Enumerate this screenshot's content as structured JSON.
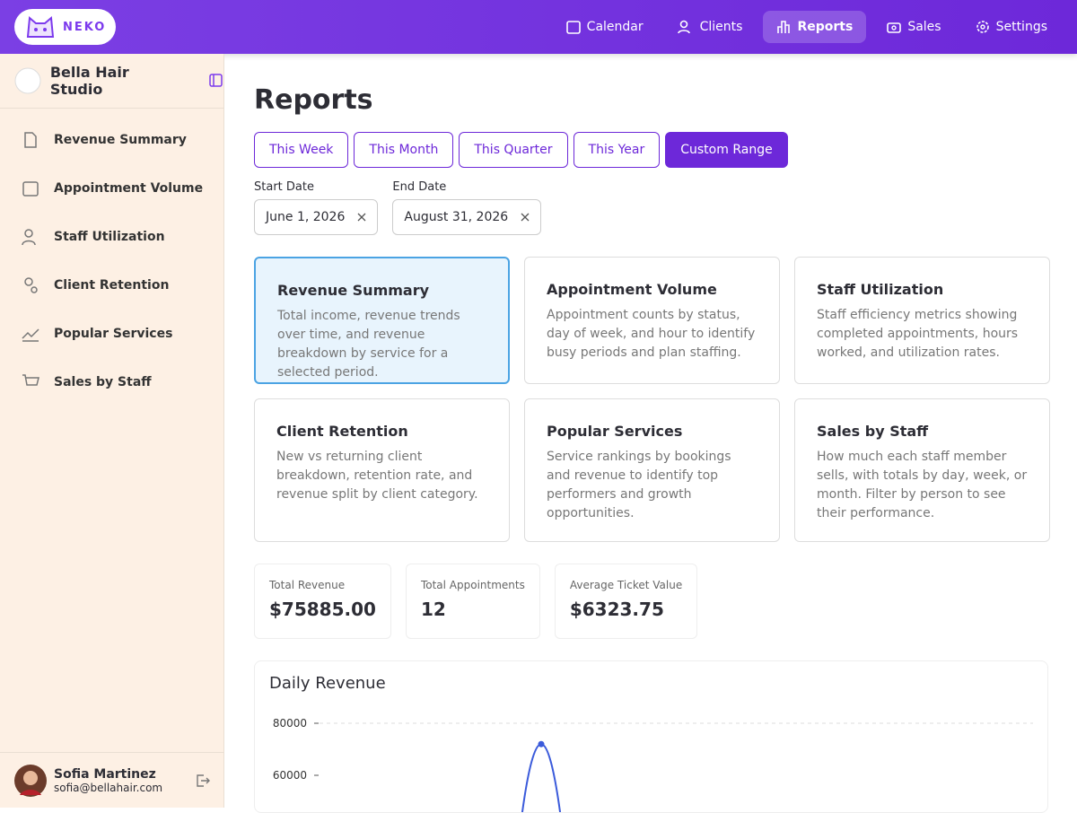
{
  "nav": {
    "logo": "NEKO",
    "items": [
      "Calendar",
      "Clients",
      "Reports",
      "Sales",
      "Settings"
    ]
  },
  "sidebar": {
    "business": "Bella Hair Studio",
    "items": [
      "Revenue Summary",
      "Appointment Volume",
      "Staff Utilization",
      "Client Retention",
      "Popular Services",
      "Sales by Staff"
    ],
    "user": {
      "name": "Sofia Martinez",
      "email": "sofia@bellahair.com"
    }
  },
  "page": {
    "title": "Reports",
    "ranges": [
      "This Week",
      "This Month",
      "This Quarter",
      "This Year",
      "Custom Range"
    ],
    "start_label": "Start Date",
    "start_value": "June 1, 2026",
    "end_label": "End Date",
    "end_value": "August 31, 2026",
    "cards": [
      {
        "title": "Revenue Summary",
        "text": "Total income, revenue trends over time, and revenue breakdown by service for a selected period."
      },
      {
        "title": "Appointment Volume",
        "text": "Appointment counts by status, day of week, and hour to identify busy periods and plan staffing."
      },
      {
        "title": "Staff Utilization",
        "text": "Staff efficiency metrics showing completed appointments, hours worked, and utilization rates."
      },
      {
        "title": "Client Retention",
        "text": "New vs returning client breakdown, retention rate, and revenue split by client category."
      },
      {
        "title": "Popular Services",
        "text": "Service rankings by bookings and revenue to identify top performers and growth opportunities."
      },
      {
        "title": "Sales by Staff",
        "text": "How much each staff member sells, with totals by day, week, or month. Filter by person to see their performance."
      }
    ],
    "stats": [
      {
        "label": "Total Revenue",
        "value": "$75885.00"
      },
      {
        "label": "Total Appointments",
        "value": "12"
      },
      {
        "label": "Average Ticket Value",
        "value": "$6323.75"
      }
    ]
  },
  "chart_data": {
    "type": "line",
    "title": "Daily Revenue",
    "ylim": [
      0,
      80000
    ],
    "yticks": [
      60000,
      80000
    ],
    "color": "#3b5bdb",
    "values": [
      72000
    ]
  }
}
